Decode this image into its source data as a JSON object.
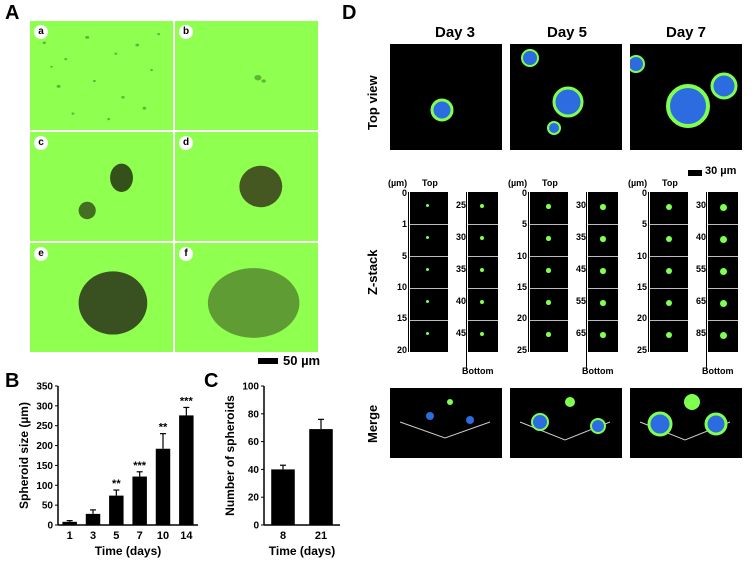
{
  "panel_letters": {
    "A": "A",
    "B": "B",
    "C": "C",
    "D": "D"
  },
  "panelA": {
    "cells": [
      "a",
      "b",
      "c",
      "d",
      "e",
      "f"
    ],
    "scalebar": "50 µm"
  },
  "panelD": {
    "days": [
      "Day 3",
      "Day 5",
      "Day 7"
    ],
    "rows": {
      "top": "Top view",
      "zstack": "Z-stack",
      "merge": "Merge"
    },
    "scalebar": "30 µm",
    "unit": "(µm)",
    "top_label": "Top",
    "bottom_label": "Bottom",
    "day3": {
      "left": [
        "0",
        "1",
        "5",
        "10",
        "15",
        "20"
      ],
      "right": [
        "25",
        "30",
        "35",
        "40",
        "45"
      ]
    },
    "day5": {
      "left": [
        "0",
        "5",
        "10",
        "15",
        "20",
        "25"
      ],
      "right": [
        "30",
        "35",
        "45",
        "55",
        "65"
      ]
    },
    "day7": {
      "left": [
        "0",
        "5",
        "10",
        "15",
        "20",
        "25"
      ],
      "right": [
        "30",
        "40",
        "55",
        "65",
        "85"
      ]
    }
  },
  "chart_data": [
    {
      "type": "bar",
      "panel": "B",
      "categories": [
        "1",
        "3",
        "5",
        "7",
        "10",
        "14"
      ],
      "values": [
        8,
        28,
        74,
        122,
        192,
        276
      ],
      "errors": [
        3,
        10,
        14,
        12,
        38,
        20
      ],
      "annotations": [
        "",
        "",
        "**",
        "***",
        "**",
        "***"
      ],
      "xlabel": "Time (days)",
      "ylabel": "Spheroid size (µm)",
      "ylim": [
        0,
        350
      ],
      "yticks": [
        "0",
        "50",
        "100",
        "150",
        "200",
        "250",
        "300",
        "350"
      ]
    },
    {
      "type": "bar",
      "panel": "C",
      "categories": [
        "8",
        "21"
      ],
      "values": [
        40,
        69
      ],
      "errors": [
        3,
        7
      ],
      "xlabel": "Time (days)",
      "ylabel": "Number of spheroids",
      "ylim": [
        0,
        100
      ],
      "yticks": [
        "0",
        "20",
        "40",
        "60",
        "80",
        "100"
      ]
    }
  ]
}
